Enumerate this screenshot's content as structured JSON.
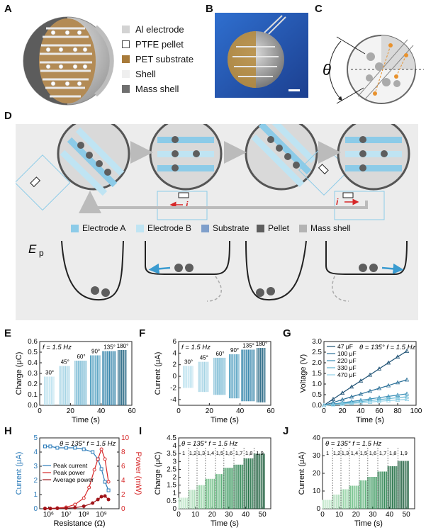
{
  "panels": {
    "A": "A",
    "B": "B",
    "C": "C",
    "D": "D",
    "E": "E",
    "F": "F",
    "G": "G",
    "H": "H",
    "I": "I",
    "J": "J"
  },
  "legend_A": [
    {
      "label": "Al electrode",
      "color": "#d3d3d3"
    },
    {
      "label": "PTFE pellet",
      "color": "#ffffff"
    },
    {
      "label": "PET substrate",
      "color": "#a87b3a"
    },
    {
      "label": "Shell",
      "color": "#efefef"
    },
    {
      "label": "Mass shell",
      "color": "#6f6f6f"
    }
  ],
  "theta_symbol": "θ",
  "legend_D": [
    {
      "label": "Electrode A",
      "color": "#8ccbe8"
    },
    {
      "label": "Electrode B",
      "color": "#bfe4f3"
    },
    {
      "label": "Substrate",
      "color": "#7f9fcb"
    },
    {
      "label": "Pellet",
      "color": "#5e5e5e"
    },
    {
      "label": "Mass shell",
      "color": "#b3b3b3"
    }
  ],
  "ep_label": "E",
  "ep_sub": "p",
  "current_symbol": "i",
  "colors": {
    "blue_arrow": "#3a9bd0",
    "red": "#d62728",
    "darkteal": "#1b5f7d",
    "green": "#2e8b57"
  },
  "chart_data": [
    {
      "id": "E",
      "type": "bar",
      "annotation": "f = 1.5 Hz",
      "xlabel": "Time (s)",
      "ylabel": "Charge (μC)",
      "xlim": [
        0,
        60
      ],
      "ylim": [
        0,
        0.6
      ],
      "xticks": [
        "0",
        "20",
        "40",
        "60"
      ],
      "yticks": [
        "0.0",
        "0.1",
        "0.2",
        "0.3",
        "0.4",
        "0.5",
        "0.6"
      ],
      "segments": [
        {
          "label": "30°",
          "x": [
            3,
            10
          ],
          "value": 0.27
        },
        {
          "label": "45°",
          "x": [
            13,
            20
          ],
          "value": 0.37
        },
        {
          "label": "60°",
          "x": [
            23,
            31
          ],
          "value": 0.42
        },
        {
          "label": "90°",
          "x": [
            33,
            40
          ],
          "value": 0.47
        },
        {
          "label": "135°",
          "x": [
            41,
            50
          ],
          "value": 0.51
        },
        {
          "label": "180°",
          "x": [
            51,
            57
          ],
          "value": 0.52
        }
      ]
    },
    {
      "id": "F",
      "type": "bar",
      "annotation": "f = 1.5 Hz",
      "xlabel": "Time (s)",
      "ylabel": "Current (μA)",
      "xlim": [
        0,
        60
      ],
      "ylim": [
        -5,
        6
      ],
      "xticks": [
        "0",
        "20",
        "40",
        "60"
      ],
      "yticks": [
        "-4",
        "-2",
        "0",
        "2",
        "4",
        "6"
      ],
      "segments": [
        {
          "label": "30°",
          "x": [
            3,
            10
          ],
          "value": 1.8,
          "neg": -2.0
        },
        {
          "label": "45°",
          "x": [
            13,
            20
          ],
          "value": 2.5,
          "neg": -2.7
        },
        {
          "label": "60°",
          "x": [
            23,
            31
          ],
          "value": 3.2,
          "neg": -3.2
        },
        {
          "label": "90°",
          "x": [
            33,
            40
          ],
          "value": 3.8,
          "neg": -3.8
        },
        {
          "label": "135°",
          "x": [
            41,
            50
          ],
          "value": 4.6,
          "neg": -4.3
        },
        {
          "label": "180°",
          "x": [
            51,
            57
          ],
          "value": 4.9,
          "neg": -4.5
        }
      ]
    },
    {
      "id": "G",
      "type": "line",
      "annotation": "θ = 135° f = 1.5 Hz",
      "xlabel": "Time (s)",
      "ylabel": "Voltage (V)",
      "xlim": [
        0,
        100
      ],
      "ylim": [
        0,
        3
      ],
      "xticks": [
        "0",
        "20",
        "40",
        "60",
        "80",
        "100"
      ],
      "yticks": [
        "0.0",
        "0.5",
        "1.0",
        "1.5",
        "2.0",
        "2.5",
        "3.0"
      ],
      "series": [
        {
          "name": "47 μF",
          "color": "#1b4f72",
          "x": [
            0,
            10,
            20,
            30,
            40,
            50,
            60,
            70,
            80,
            90
          ],
          "y": [
            0,
            0.29,
            0.58,
            0.87,
            1.15,
            1.43,
            1.72,
            2.0,
            2.28,
            2.55
          ]
        },
        {
          "name": "100 μF",
          "color": "#2a6f97",
          "x": [
            0,
            10,
            20,
            30,
            40,
            50,
            60,
            70,
            80,
            90
          ],
          "y": [
            0,
            0.13,
            0.27,
            0.4,
            0.53,
            0.67,
            0.8,
            0.93,
            1.07,
            1.2
          ]
        },
        {
          "name": "220 μF",
          "color": "#3a8fb7",
          "x": [
            0,
            10,
            20,
            30,
            40,
            50,
            60,
            70,
            80,
            90
          ],
          "y": [
            0,
            0.06,
            0.12,
            0.18,
            0.24,
            0.3,
            0.36,
            0.42,
            0.48,
            0.54
          ]
        },
        {
          "name": "330 μF",
          "color": "#5fb4d2",
          "x": [
            0,
            10,
            20,
            30,
            40,
            50,
            60,
            70,
            80,
            90
          ],
          "y": [
            0,
            0.04,
            0.09,
            0.13,
            0.18,
            0.22,
            0.27,
            0.31,
            0.36,
            0.4
          ]
        },
        {
          "name": "470 μF",
          "color": "#8fd0e6",
          "x": [
            0,
            10,
            20,
            30,
            40,
            50,
            60,
            70,
            80,
            90
          ],
          "y": [
            0,
            0.03,
            0.06,
            0.09,
            0.12,
            0.15,
            0.19,
            0.22,
            0.25,
            0.28
          ]
        }
      ]
    },
    {
      "id": "H",
      "type": "line",
      "annotation": "θ = 135° f = 1.5 Hz",
      "xlabel": "Resistance (Ω)",
      "ylabel": "Current (μA)",
      "ylabel_right": "Power (mW)",
      "xscale": "log",
      "xlim_exp": [
        5.5,
        10
      ],
      "xticks": [
        "10⁶",
        "10⁷",
        "10⁸",
        "10⁹"
      ],
      "ylim": [
        0,
        5
      ],
      "yticks": [
        "0",
        "1",
        "2",
        "3",
        "4",
        "5"
      ],
      "ylim_right": [
        0,
        10
      ],
      "yticks_right": [
        "0",
        "2",
        "4",
        "6",
        "8",
        "10"
      ],
      "series": [
        {
          "name": "Peak current",
          "axis": "left",
          "color": "#2b7bb9",
          "x_exp": [
            5.8,
            6.1,
            6.5,
            7.0,
            7.5,
            8.0,
            8.5,
            8.8,
            9.0,
            9.2,
            9.4
          ],
          "y": [
            4.4,
            4.4,
            4.3,
            4.3,
            4.3,
            4.2,
            4.0,
            3.5,
            2.8,
            1.9,
            1.3
          ]
        },
        {
          "name": "Peak power",
          "axis": "right",
          "color": "#d62728",
          "x_exp": [
            5.8,
            6.1,
            6.5,
            7.0,
            7.5,
            8.0,
            8.3,
            8.6,
            8.8,
            9.0,
            9.2,
            9.4
          ],
          "y": [
            0.05,
            0.05,
            0.1,
            0.2,
            0.6,
            1.5,
            3.0,
            5.5,
            7.0,
            8.4,
            7.0,
            3.8
          ]
        },
        {
          "name": "Average power",
          "axis": "right",
          "color": "#a0151a",
          "x_exp": [
            5.8,
            6.1,
            6.5,
            7.0,
            7.5,
            8.0,
            8.5,
            8.8,
            9.0,
            9.2,
            9.4
          ],
          "y": [
            0.02,
            0.02,
            0.05,
            0.08,
            0.15,
            0.35,
            0.8,
            1.3,
            1.7,
            1.8,
            1.3
          ]
        }
      ]
    },
    {
      "id": "I",
      "type": "bar",
      "annotation": "θ = 135° f = 1.5 Hz",
      "xlabel": "Time (s)",
      "ylabel": "Charge (μC)",
      "xlim": [
        0,
        55
      ],
      "ylim": [
        0,
        4.5
      ],
      "xticks": [
        "0",
        "10",
        "20",
        "30",
        "40",
        "50"
      ],
      "yticks": [
        "0",
        "0.5",
        "1",
        "1.5",
        "2",
        "2.5",
        "3",
        "3.5",
        "4",
        "4.5"
      ],
      "units": [
        "1",
        "1,2",
        "1,3",
        "1,4",
        "1,5",
        "1,6",
        "1,7",
        "1,8",
        "1,9"
      ],
      "segments": [
        {
          "x": [
            0,
            6
          ],
          "value": 0.7
        },
        {
          "x": [
            6,
            11
          ],
          "value": 1.2
        },
        {
          "x": [
            11,
            16
          ],
          "value": 1.5
        },
        {
          "x": [
            16,
            22
          ],
          "value": 1.9
        },
        {
          "x": [
            22,
            27
          ],
          "value": 2.2
        },
        {
          "x": [
            27,
            33
          ],
          "value": 2.6
        },
        {
          "x": [
            33,
            39
          ],
          "value": 2.8
        },
        {
          "x": [
            39,
            45
          ],
          "value": 3.2
        },
        {
          "x": [
            45,
            52
          ],
          "value": 3.5
        }
      ]
    },
    {
      "id": "J",
      "type": "bar",
      "annotation": "θ = 135° f = 1.5 Hz",
      "xlabel": "Time (s)",
      "ylabel": "Current (μA)",
      "xlim": [
        0,
        55
      ],
      "ylim": [
        0,
        40
      ],
      "xticks": [
        "0",
        "10",
        "20",
        "30",
        "40",
        "50"
      ],
      "yticks": [
        "0",
        "10",
        "20",
        "30",
        "40"
      ],
      "units": [
        "1",
        "1,2",
        "1,3",
        "1,4",
        "1,5",
        "1,6",
        "1,7",
        "1,8",
        "1,9"
      ],
      "segments": [
        {
          "x": [
            0,
            6
          ],
          "value": 5
        },
        {
          "x": [
            6,
            11
          ],
          "value": 8
        },
        {
          "x": [
            11,
            16
          ],
          "value": 11
        },
        {
          "x": [
            16,
            22
          ],
          "value": 13
        },
        {
          "x": [
            22,
            27
          ],
          "value": 16
        },
        {
          "x": [
            27,
            33
          ],
          "value": 18
        },
        {
          "x": [
            33,
            39
          ],
          "value": 21
        },
        {
          "x": [
            39,
            45
          ],
          "value": 24
        },
        {
          "x": [
            45,
            52
          ],
          "value": 27
        }
      ]
    }
  ]
}
